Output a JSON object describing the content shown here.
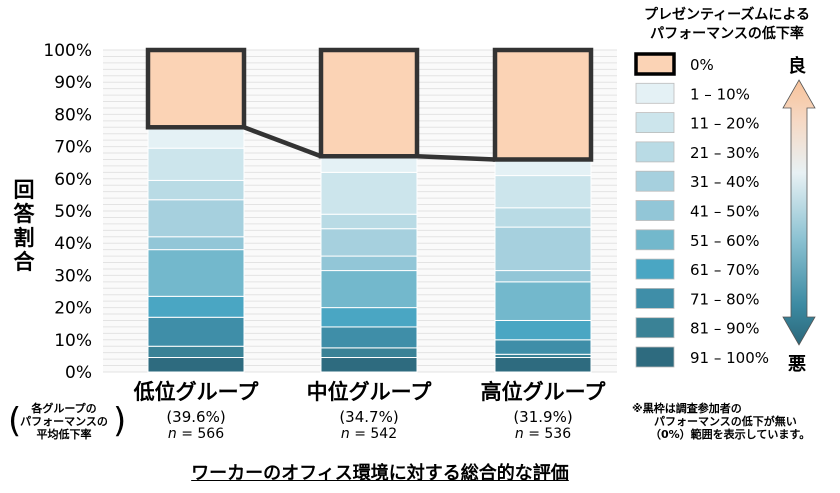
{
  "chart_data": {
    "type": "bar",
    "stacked": true,
    "ylabel": "回答割合",
    "ylim": [
      0,
      100
    ],
    "yticks": [
      "0%",
      "10%",
      "20%",
      "30%",
      "40%",
      "50%",
      "60%",
      "70%",
      "80%",
      "90%",
      "100%"
    ],
    "xlabel": "ワーカーのオフィス環境に対する総合的な評価",
    "categories": [
      "低位グループ",
      "中位グループ",
      "高位グループ"
    ],
    "category_averages": [
      "(39.6%)",
      "(34.7%)",
      "(31.9%)"
    ],
    "category_n_prefix": "n",
    "category_n": [
      "= 566",
      "= 542",
      "= 536"
    ],
    "average_note": [
      "各グループの",
      "パフォーマンスの",
      "平均低下率"
    ],
    "legend_title": [
      "プレゼンティーズムによる",
      "パフォーマンスの低下率"
    ],
    "legend_good": "良",
    "legend_bad": "悪",
    "series": [
      {
        "name": "91 – 100%",
        "color": "#2e6b7f",
        "values": [
          4.5,
          4.5,
          4.5
        ]
      },
      {
        "name": "81 – 90%",
        "color": "#3a8296",
        "values": [
          3.5,
          3.0,
          1.0
        ]
      },
      {
        "name": "71 – 80%",
        "color": "#3f8ea8",
        "values": [
          9.0,
          6.5,
          4.5
        ]
      },
      {
        "name": "61 – 70%",
        "color": "#4aa6c3",
        "values": [
          6.5,
          6.0,
          6.0
        ]
      },
      {
        "name": "51 – 60%",
        "color": "#73b8cc",
        "values": [
          14.5,
          11.5,
          12.0
        ]
      },
      {
        "name": "41 – 50%",
        "color": "#92c6d7",
        "values": [
          4.0,
          4.5,
          3.5
        ]
      },
      {
        "name": "31 – 40%",
        "color": "#a6d0de",
        "values": [
          11.5,
          8.5,
          13.5
        ]
      },
      {
        "name": "21 – 30%",
        "color": "#b9dbe5",
        "values": [
          6.0,
          4.5,
          6.0
        ]
      },
      {
        "name": "11 – 20%",
        "color": "#cce5ec",
        "values": [
          10.0,
          13.0,
          10.0
        ]
      },
      {
        "name": "1 – 10%",
        "color": "#e4f1f5",
        "values": [
          6.5,
          5.0,
          5.0
        ]
      },
      {
        "name": "0%",
        "color": "#fbd3b5",
        "values": [
          24.0,
          33.0,
          34.0
        ]
      }
    ],
    "note": [
      "※黒枠は調査参加者の",
      "パフォーマンスの低下が無い",
      "（0%）範囲を表示しています。"
    ]
  }
}
